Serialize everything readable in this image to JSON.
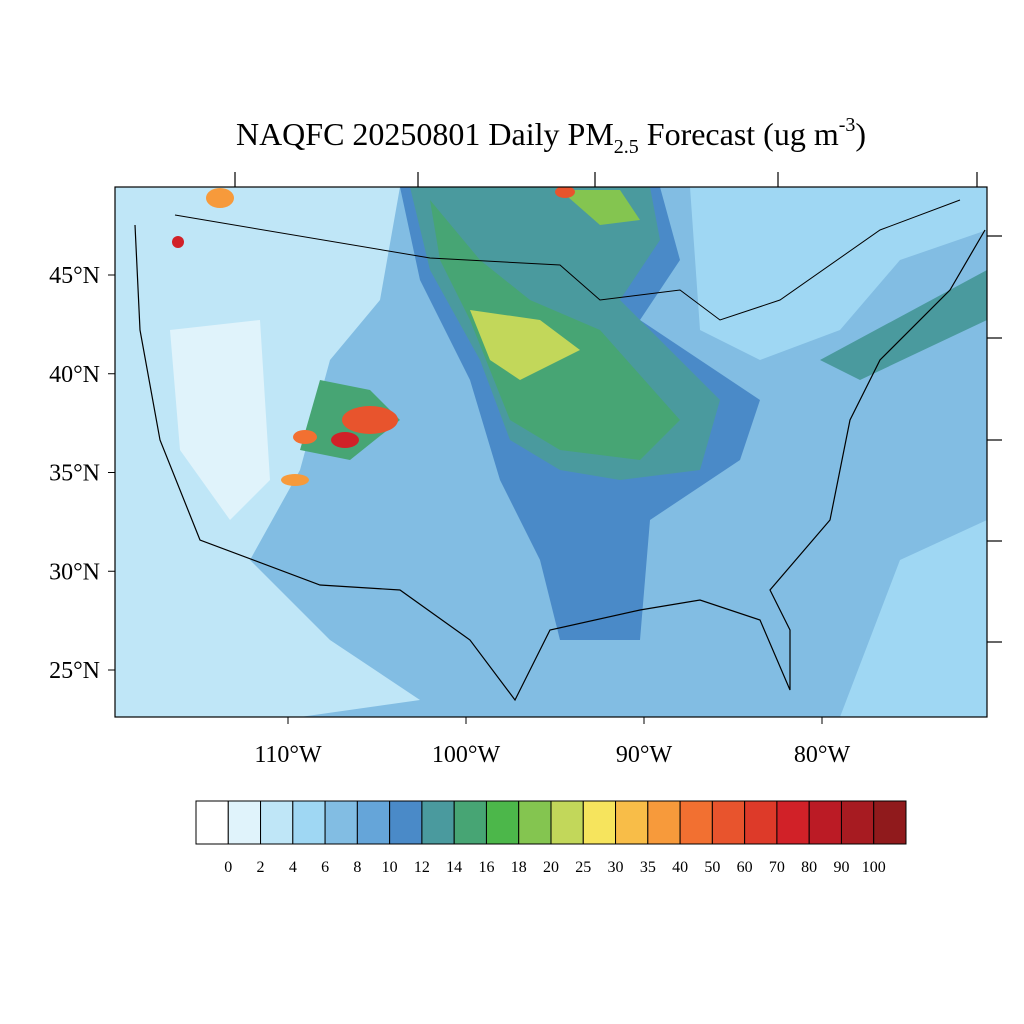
{
  "title": {
    "main": "NAQFC 20250801 Daily PM",
    "subscript": "2.5",
    "rest": " Forecast (ug m",
    "superscript": "-3",
    "end": ")"
  },
  "map": {
    "lat_ticks": [
      {
        "value": 45,
        "label": "45°N"
      },
      {
        "value": 40,
        "label": "40°N"
      },
      {
        "value": 35,
        "label": "35°N"
      },
      {
        "value": 30,
        "label": "30°N"
      },
      {
        "value": 25,
        "label": "25°N"
      }
    ],
    "lon_ticks": [
      {
        "value": 110,
        "label": "110°W"
      },
      {
        "value": 100,
        "label": "100°W"
      },
      {
        "value": 90,
        "label": "90°W"
      },
      {
        "value": 80,
        "label": "80°W"
      }
    ]
  },
  "colorbar": {
    "levels": [
      0,
      2,
      4,
      6,
      8,
      10,
      12,
      14,
      16,
      18,
      20,
      25,
      30,
      35,
      40,
      50,
      60,
      70,
      80,
      90,
      100
    ],
    "colors": [
      "#ffffff",
      "#e0f3fb",
      "#bfe6f7",
      "#9fd7f3",
      "#82bde3",
      "#65a5d9",
      "#4a8ac8",
      "#4a9a9e",
      "#47a574",
      "#4cb74a",
      "#84c550",
      "#c2d75a",
      "#f6e45d",
      "#f8bd48",
      "#f79a3b",
      "#f27031",
      "#e8542d",
      "#dd3a29",
      "#d12128",
      "#bb1b25",
      "#a71b21",
      "#901a1c"
    ]
  }
}
